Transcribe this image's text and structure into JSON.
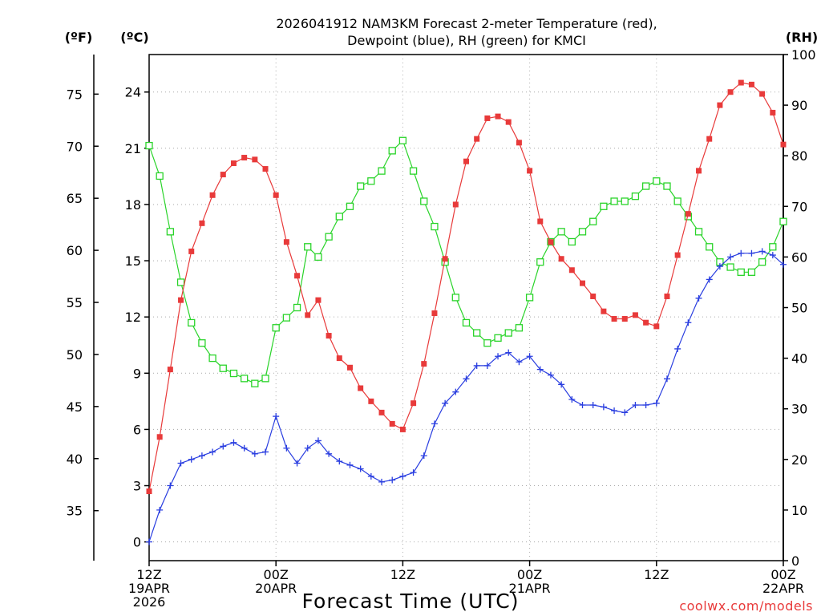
{
  "chart_data": {
    "type": "line",
    "title_line1": "2026041912 NAM3KM Forecast 2-meter Temperature (red),",
    "title_line2": "Dewpoint (blue), RH (green) for KMCI",
    "xlabel": "Forecast Time (UTC)",
    "credit": "coolwx.com/models",
    "units": {
      "fahrenheit": "(ºF)",
      "celsius": "(ºC)",
      "rh": "(RH)"
    },
    "x_range": [
      0,
      60
    ],
    "y_celsius_range": [
      -1,
      26.0
    ],
    "y_rh_range": [
      0,
      100
    ],
    "x_ticks": [
      {
        "hour": 0,
        "lines": [
          "12Z",
          "19APR",
          "2026"
        ]
      },
      {
        "hour": 12,
        "lines": [
          "00Z",
          "20APR"
        ]
      },
      {
        "hour": 24,
        "lines": [
          "12Z"
        ]
      },
      {
        "hour": 36,
        "lines": [
          "00Z",
          "21APR"
        ]
      },
      {
        "hour": 48,
        "lines": [
          "12Z"
        ]
      },
      {
        "hour": 60,
        "lines": [
          "00Z",
          "22APR"
        ]
      }
    ],
    "y_celsius_ticks": [
      "0",
      "3",
      "6",
      "9",
      "12",
      "15",
      "18",
      "21",
      "24"
    ],
    "y_fahrenheit_ticks": [
      "35",
      "40",
      "45",
      "50",
      "55",
      "60",
      "65",
      "70",
      "75"
    ],
    "y_rh_ticks": [
      "0",
      "10",
      "20",
      "30",
      "40",
      "50",
      "60",
      "70",
      "80",
      "90",
      "100"
    ],
    "series": [
      {
        "name": "Temperature",
        "unit": "C",
        "color": "#e83a3a",
        "marker": "filled-square",
        "values": [
          2.7,
          5.6,
          9.2,
          12.9,
          15.5,
          17.0,
          18.5,
          19.6,
          20.2,
          20.5,
          20.4,
          19.9,
          18.5,
          16.0,
          14.2,
          12.1,
          12.9,
          11.0,
          9.8,
          9.3,
          8.2,
          7.5,
          6.9,
          6.3,
          6.0,
          7.4,
          9.5,
          12.2,
          15.1,
          18.0,
          20.3,
          21.5,
          22.6,
          22.7,
          22.4,
          21.3,
          19.8,
          17.1,
          16.0,
          15.1,
          14.5,
          13.8,
          13.1,
          12.3,
          11.9,
          11.9,
          12.1,
          11.7,
          11.5,
          13.1,
          15.3,
          17.5,
          19.8,
          21.5,
          23.3,
          24.0,
          24.5,
          24.4,
          23.9,
          22.9,
          21.2
        ]
      },
      {
        "name": "Dewpoint",
        "unit": "C",
        "color": "#2a3ee0",
        "marker": "plus",
        "values": [
          0.0,
          1.7,
          3.0,
          4.2,
          4.4,
          4.6,
          4.8,
          5.1,
          5.3,
          5.0,
          4.7,
          4.8,
          6.7,
          5.0,
          4.2,
          5.0,
          5.4,
          4.7,
          4.3,
          4.1,
          3.9,
          3.5,
          3.2,
          3.3,
          3.5,
          3.7,
          4.6,
          6.3,
          7.4,
          8.0,
          8.7,
          9.4,
          9.4,
          9.9,
          10.1,
          9.6,
          9.9,
          9.2,
          8.9,
          8.4,
          7.6,
          7.3,
          7.3,
          7.2,
          7.0,
          6.9,
          7.3,
          7.3,
          7.4,
          8.7,
          10.3,
          11.7,
          13.0,
          14.0,
          14.7,
          15.2,
          15.4,
          15.4,
          15.5,
          15.3,
          14.8
        ]
      },
      {
        "name": "RH",
        "unit": "%",
        "color": "#2ad42a",
        "marker": "open-square",
        "values": [
          82,
          76,
          65,
          55,
          47,
          43,
          40,
          38,
          37,
          36,
          35,
          36,
          46,
          48,
          50,
          62,
          60,
          64,
          68,
          70,
          74,
          75,
          77,
          81,
          83,
          77,
          71,
          66,
          59,
          52,
          47,
          45,
          43,
          44,
          45,
          46,
          52,
          59,
          63,
          65,
          63,
          65,
          67,
          70,
          71,
          71,
          72,
          74,
          75,
          74,
          71,
          68,
          65,
          62,
          59,
          58,
          57,
          57,
          59,
          62,
          67
        ]
      }
    ]
  }
}
